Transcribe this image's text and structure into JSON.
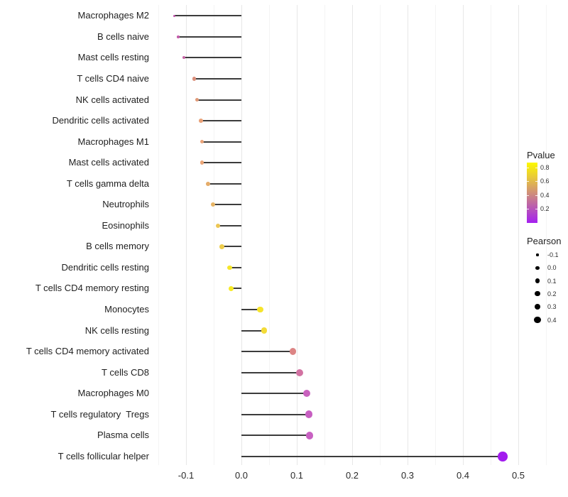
{
  "chart_data": {
    "type": "scatter",
    "variant": "lollipop",
    "title": "",
    "xlabel": "",
    "ylabel": "",
    "x_ticks": [
      "-0.1",
      "0.0",
      "0.1",
      "0.2",
      "0.3",
      "0.4",
      "0.5"
    ],
    "x_tick_values": [
      -0.1,
      0.0,
      0.1,
      0.2,
      0.3,
      0.4,
      0.5
    ],
    "xlim": [
      -0.155,
      0.557
    ],
    "grid": "vertical-only",
    "points": [
      {
        "label": "Macrophages M2",
        "pearson": -0.121,
        "pvalue_approx": 0.3,
        "color": "#C155AC",
        "size": 3.2
      },
      {
        "label": "B cells naive",
        "pearson": -0.114,
        "pvalue_approx": 0.31,
        "color": "#C35BAA",
        "size": 3.4
      },
      {
        "label": "Mast cells resting",
        "pearson": -0.104,
        "pvalue_approx": 0.34,
        "color": "#C765A6",
        "size": 4.0
      },
      {
        "label": "T cells CD4 naive",
        "pearson": -0.085,
        "pvalue_approx": 0.47,
        "color": "#DB8F7B",
        "size": 5.2
      },
      {
        "label": "NK cells activated",
        "pearson": -0.08,
        "pvalue_approx": 0.5,
        "color": "#E09A78",
        "size": 5.4
      },
      {
        "label": "Dendritic cells activated",
        "pearson": -0.073,
        "pvalue_approx": 0.53,
        "color": "#E9A178",
        "size": 5.6
      },
      {
        "label": "Macrophages M1",
        "pearson": -0.071,
        "pvalue_approx": 0.53,
        "color": "#EAA378",
        "size": 5.6
      },
      {
        "label": "Mast cells activated",
        "pearson": -0.071,
        "pvalue_approx": 0.54,
        "color": "#ECA678",
        "size": 5.6
      },
      {
        "label": "T cells gamma delta",
        "pearson": -0.06,
        "pvalue_approx": 0.58,
        "color": "#E5AC69",
        "size": 5.8
      },
      {
        "label": "Neutrophils",
        "pearson": -0.051,
        "pvalue_approx": 0.61,
        "color": "#E7B464",
        "size": 6.0
      },
      {
        "label": "Eosinophils",
        "pearson": -0.042,
        "pvalue_approx": 0.67,
        "color": "#ECC654",
        "size": 6.4
      },
      {
        "label": "B cells memory",
        "pearson": -0.035,
        "pvalue_approx": 0.7,
        "color": "#EECD4C",
        "size": 6.6
      },
      {
        "label": "Dendritic cells resting",
        "pearson": -0.021,
        "pvalue_approx": 0.82,
        "color": "#F6E62A",
        "size": 6.8
      },
      {
        "label": "T cells CD4 memory resting",
        "pearson": -0.018,
        "pvalue_approx": 0.84,
        "color": "#F7EA24",
        "size": 7.0
      },
      {
        "label": "Monocytes",
        "pearson": 0.034,
        "pvalue_approx": 0.81,
        "color": "#F6E42C",
        "size": 8.2
      },
      {
        "label": "NK cells resting",
        "pearson": 0.041,
        "pvalue_approx": 0.77,
        "color": "#F3DB38",
        "size": 8.6
      },
      {
        "label": "T cells CD4 memory activated",
        "pearson": 0.093,
        "pvalue_approx": 0.46,
        "color": "#DC8484",
        "size": 9.6
      },
      {
        "label": "T cells CD8",
        "pearson": 0.105,
        "pvalue_approx": 0.37,
        "color": "#D272A2",
        "size": 10.0
      },
      {
        "label": "Macrophages M0",
        "pearson": 0.118,
        "pvalue_approx": 0.31,
        "color": "#C962BE",
        "size": 10.6
      },
      {
        "label": "T cells regulatory  Tregs",
        "pearson": 0.122,
        "pvalue_approx": 0.3,
        "color": "#C75FC1",
        "size": 10.6
      },
      {
        "label": "Plasma cells",
        "pearson": 0.123,
        "pvalue_approx": 0.3,
        "color": "#C861C2",
        "size": 10.8
      },
      {
        "label": "T cells follicular helper",
        "pearson": 0.472,
        "pvalue_approx": 0.02,
        "color": "#A21CEE",
        "size": 13.5
      }
    ]
  },
  "legend": {
    "pvalue": {
      "title": "Pvalue",
      "tick_labels": [
        "0.8",
        "0.6",
        "0.4",
        "0.2"
      ],
      "tick_values": [
        0.8,
        0.6,
        0.4,
        0.2
      ],
      "range_approx": [
        0,
        0.87
      ],
      "gradient_stops": [
        "#A520F0",
        "#B858B4",
        "#D09078",
        "#E7C73C",
        "#FDF900"
      ]
    },
    "pearson": {
      "title": "Pearson",
      "entries": [
        {
          "label": "-0.1",
          "size": 3.2
        },
        {
          "label": "0.0",
          "size": 5.4
        },
        {
          "label": "0.1",
          "size": 6.4
        },
        {
          "label": "0.2",
          "size": 7.2
        },
        {
          "label": "0.3",
          "size": 8.2
        },
        {
          "label": "0.4",
          "size": 9.2
        }
      ]
    }
  },
  "colors": {
    "background": "#FFFFFF",
    "segment": "#3C3C3C",
    "grid_major": "#E7E7E7",
    "grid_minor": "#F4F4F4",
    "axis_text": "#2B2B2B",
    "legend_dot": "#000000"
  }
}
